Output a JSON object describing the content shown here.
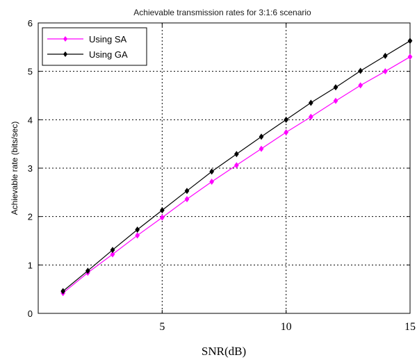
{
  "chart_data": {
    "type": "line",
    "title": "Achievable transmission rates for 3:1:6 scenario",
    "xlabel": "SNR(dB)",
    "ylabel": "Achievable rate (bits/sec)",
    "xlim": [
      0,
      15
    ],
    "ylim": [
      0,
      6
    ],
    "xticks": [
      5,
      10,
      15
    ],
    "yticks": [
      0,
      1,
      2,
      3,
      4,
      5,
      6
    ],
    "grid": true,
    "legend_position": "top-left",
    "x": [
      1,
      2,
      3,
      4,
      5,
      6,
      7,
      8,
      9,
      10,
      11,
      12,
      13,
      14,
      15
    ],
    "series": [
      {
        "name": "Using SA",
        "color": "#ff00ff",
        "marker": "diamond",
        "values": [
          0.42,
          0.84,
          1.22,
          1.61,
          1.98,
          2.36,
          2.72,
          3.06,
          3.4,
          3.74,
          4.06,
          4.39,
          4.71,
          5.0,
          5.3
        ]
      },
      {
        "name": "Using GA",
        "color": "#000000",
        "marker": "diamond",
        "values": [
          0.46,
          0.88,
          1.31,
          1.73,
          2.13,
          2.53,
          2.93,
          3.29,
          3.65,
          4.0,
          4.35,
          4.67,
          5.01,
          5.32,
          5.63
        ]
      }
    ]
  }
}
